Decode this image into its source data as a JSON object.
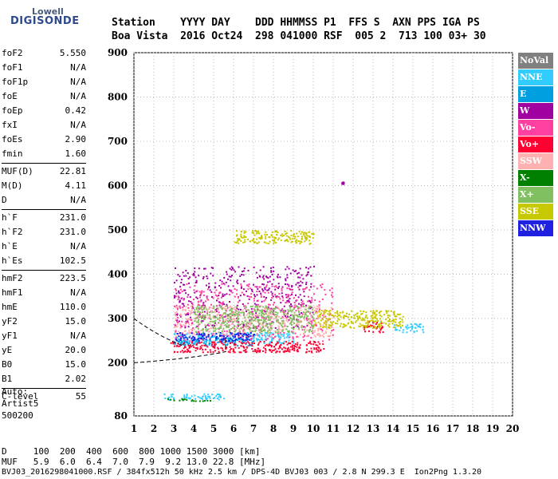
{
  "logo": {
    "top": "Lowell",
    "main": "DIGISONDE"
  },
  "header": {
    "line1": "Station    YYYY DAY    DDD HHMMSS P1  FFS S  AXN PPS IGA PS",
    "line2": "Boa Vista  2016 Oct24  298 041000 RSF  005 2  713 100 03+ 30"
  },
  "params": [
    [
      {
        "label": "foF2",
        "value": "5.550"
      },
      {
        "label": "foF1",
        "value": "N/A"
      },
      {
        "label": "foF1p",
        "value": "N/A"
      },
      {
        "label": "foE",
        "value": "N/A"
      },
      {
        "label": "foEp",
        "value": "0.42"
      },
      {
        "label": "fxI",
        "value": "N/A"
      },
      {
        "label": "foEs",
        "value": "2.90"
      },
      {
        "label": "fmin",
        "value": "1.60"
      }
    ],
    [
      {
        "label": "MUF(D)",
        "value": "22.81"
      },
      {
        "label": "M(D)",
        "value": "4.11"
      },
      {
        "label": "D",
        "value": "N/A"
      }
    ],
    [
      {
        "label": "h`F",
        "value": "231.0"
      },
      {
        "label": "h`F2",
        "value": "231.0"
      },
      {
        "label": "h`E",
        "value": "N/A"
      },
      {
        "label": "h`Es",
        "value": "102.5"
      }
    ],
    [
      {
        "label": "hmF2",
        "value": "223.5"
      },
      {
        "label": "hmF1",
        "value": "N/A"
      },
      {
        "label": "hmE",
        "value": "110.0"
      },
      {
        "label": "yF2",
        "value": "15.0"
      },
      {
        "label": "yF1",
        "value": "N/A"
      },
      {
        "label": "yE",
        "value": "20.0"
      },
      {
        "label": "B0",
        "value": "15.0"
      },
      {
        "label": "B1",
        "value": "2.02"
      }
    ],
    [
      {
        "label": "C-level",
        "value": "55"
      }
    ]
  ],
  "autoscale": {
    "line1": "Auto:",
    "line2": "Artist5",
    "line3": "500200"
  },
  "legend": [
    {
      "label": "NoVal",
      "color": "#808080"
    },
    {
      "label": "NNE",
      "color": "#33ccff"
    },
    {
      "label": "E",
      "color": "#00a0e0"
    },
    {
      "label": "W",
      "color": "#a000a0"
    },
    {
      "label": "Vo-",
      "color": "#ff40a0"
    },
    {
      "label": "Vo+",
      "color": "#ff0033"
    },
    {
      "label": "SSW",
      "color": "#ffb0b0"
    },
    {
      "label": "X-",
      "color": "#008000"
    },
    {
      "label": "X+",
      "color": "#80c060"
    },
    {
      "label": "SSE",
      "color": "#c8c800"
    },
    {
      "label": "NNW",
      "color": "#2020e0"
    }
  ],
  "chart_data": {
    "type": "scatter",
    "xlim": [
      1,
      20
    ],
    "ylim": [
      80,
      900
    ],
    "x_ticks": [
      1,
      2,
      3,
      4,
      5,
      6,
      7,
      8,
      9,
      10,
      11,
      12,
      13,
      14,
      15,
      16,
      17,
      18,
      19,
      20
    ],
    "y_ticks": [
      80,
      200,
      300,
      400,
      500,
      600,
      700,
      800,
      900
    ],
    "grid": true,
    "legend_position": "right",
    "series": [
      {
        "name": "NNE",
        "color": "#33ccff",
        "clusters": [
          {
            "x": [
              2.5,
              5.5
            ],
            "y": [
              118,
              132
            ]
          },
          {
            "x": [
              3,
              9
            ],
            "y": [
              245,
              270
            ]
          },
          {
            "x": [
              14,
              15.5
            ],
            "y": [
              270,
              290
            ]
          }
        ]
      },
      {
        "name": "E",
        "color": "#00a0e0",
        "clusters": [
          {
            "x": [
              3,
              7
            ],
            "y": [
              240,
              260
            ]
          }
        ]
      },
      {
        "name": "W",
        "color": "#a000a0",
        "clusters": [
          {
            "x": [
              3,
              10
            ],
            "y": [
              280,
              420
            ]
          },
          {
            "x": [
              11.4,
              11.5
            ],
            "y": [
              605,
              610
            ]
          }
        ]
      },
      {
        "name": "Vo-",
        "color": "#ff40a0",
        "clusters": [
          {
            "x": [
              3,
              11
            ],
            "y": [
              250,
              380
            ]
          }
        ]
      },
      {
        "name": "Vo+",
        "color": "#ff0033",
        "clusters": [
          {
            "x": [
              2.8,
              10.5
            ],
            "y": [
              225,
              250
            ]
          },
          {
            "x": [
              12.5,
              13.5
            ],
            "y": [
              270,
              295
            ]
          }
        ]
      },
      {
        "name": "SSW",
        "color": "#ffb0b0",
        "clusters": [
          {
            "x": [
              3,
              11
            ],
            "y": [
              260,
              330
            ]
          }
        ]
      },
      {
        "name": "X-",
        "color": "#008000",
        "clusters": [
          {
            "x": [
              2.5,
              5
            ],
            "y": [
              115,
              120
            ]
          }
        ]
      },
      {
        "name": "X+",
        "color": "#80c060",
        "clusters": [
          {
            "x": [
              4,
              10
            ],
            "y": [
              270,
              330
            ]
          }
        ]
      },
      {
        "name": "SSE",
        "color": "#c8c800",
        "clusters": [
          {
            "x": [
              6,
              10
            ],
            "y": [
              470,
              500
            ]
          },
          {
            "x": [
              10,
              14.5
            ],
            "y": [
              280,
              320
            ]
          }
        ]
      },
      {
        "name": "NNW",
        "color": "#2020e0",
        "clusters": [
          {
            "x": [
              3,
              7
            ],
            "y": [
              250,
              270
            ]
          }
        ]
      }
    ]
  },
  "footer": {
    "line1": "D     100  200  400  600  800 1000 1500 3000 [km]",
    "line2": "MUF   5.9  6.0  6.4  7.0  7.9  9.2 13.0 22.8 [MHz]",
    "line3": "BVJ03_2016298041000.RSF / 384fx512h 50 kHz 2.5 km / DPS-4D BVJ03 003 / 2.8 N 299.3 E  Ion2Png 1.3.20"
  }
}
